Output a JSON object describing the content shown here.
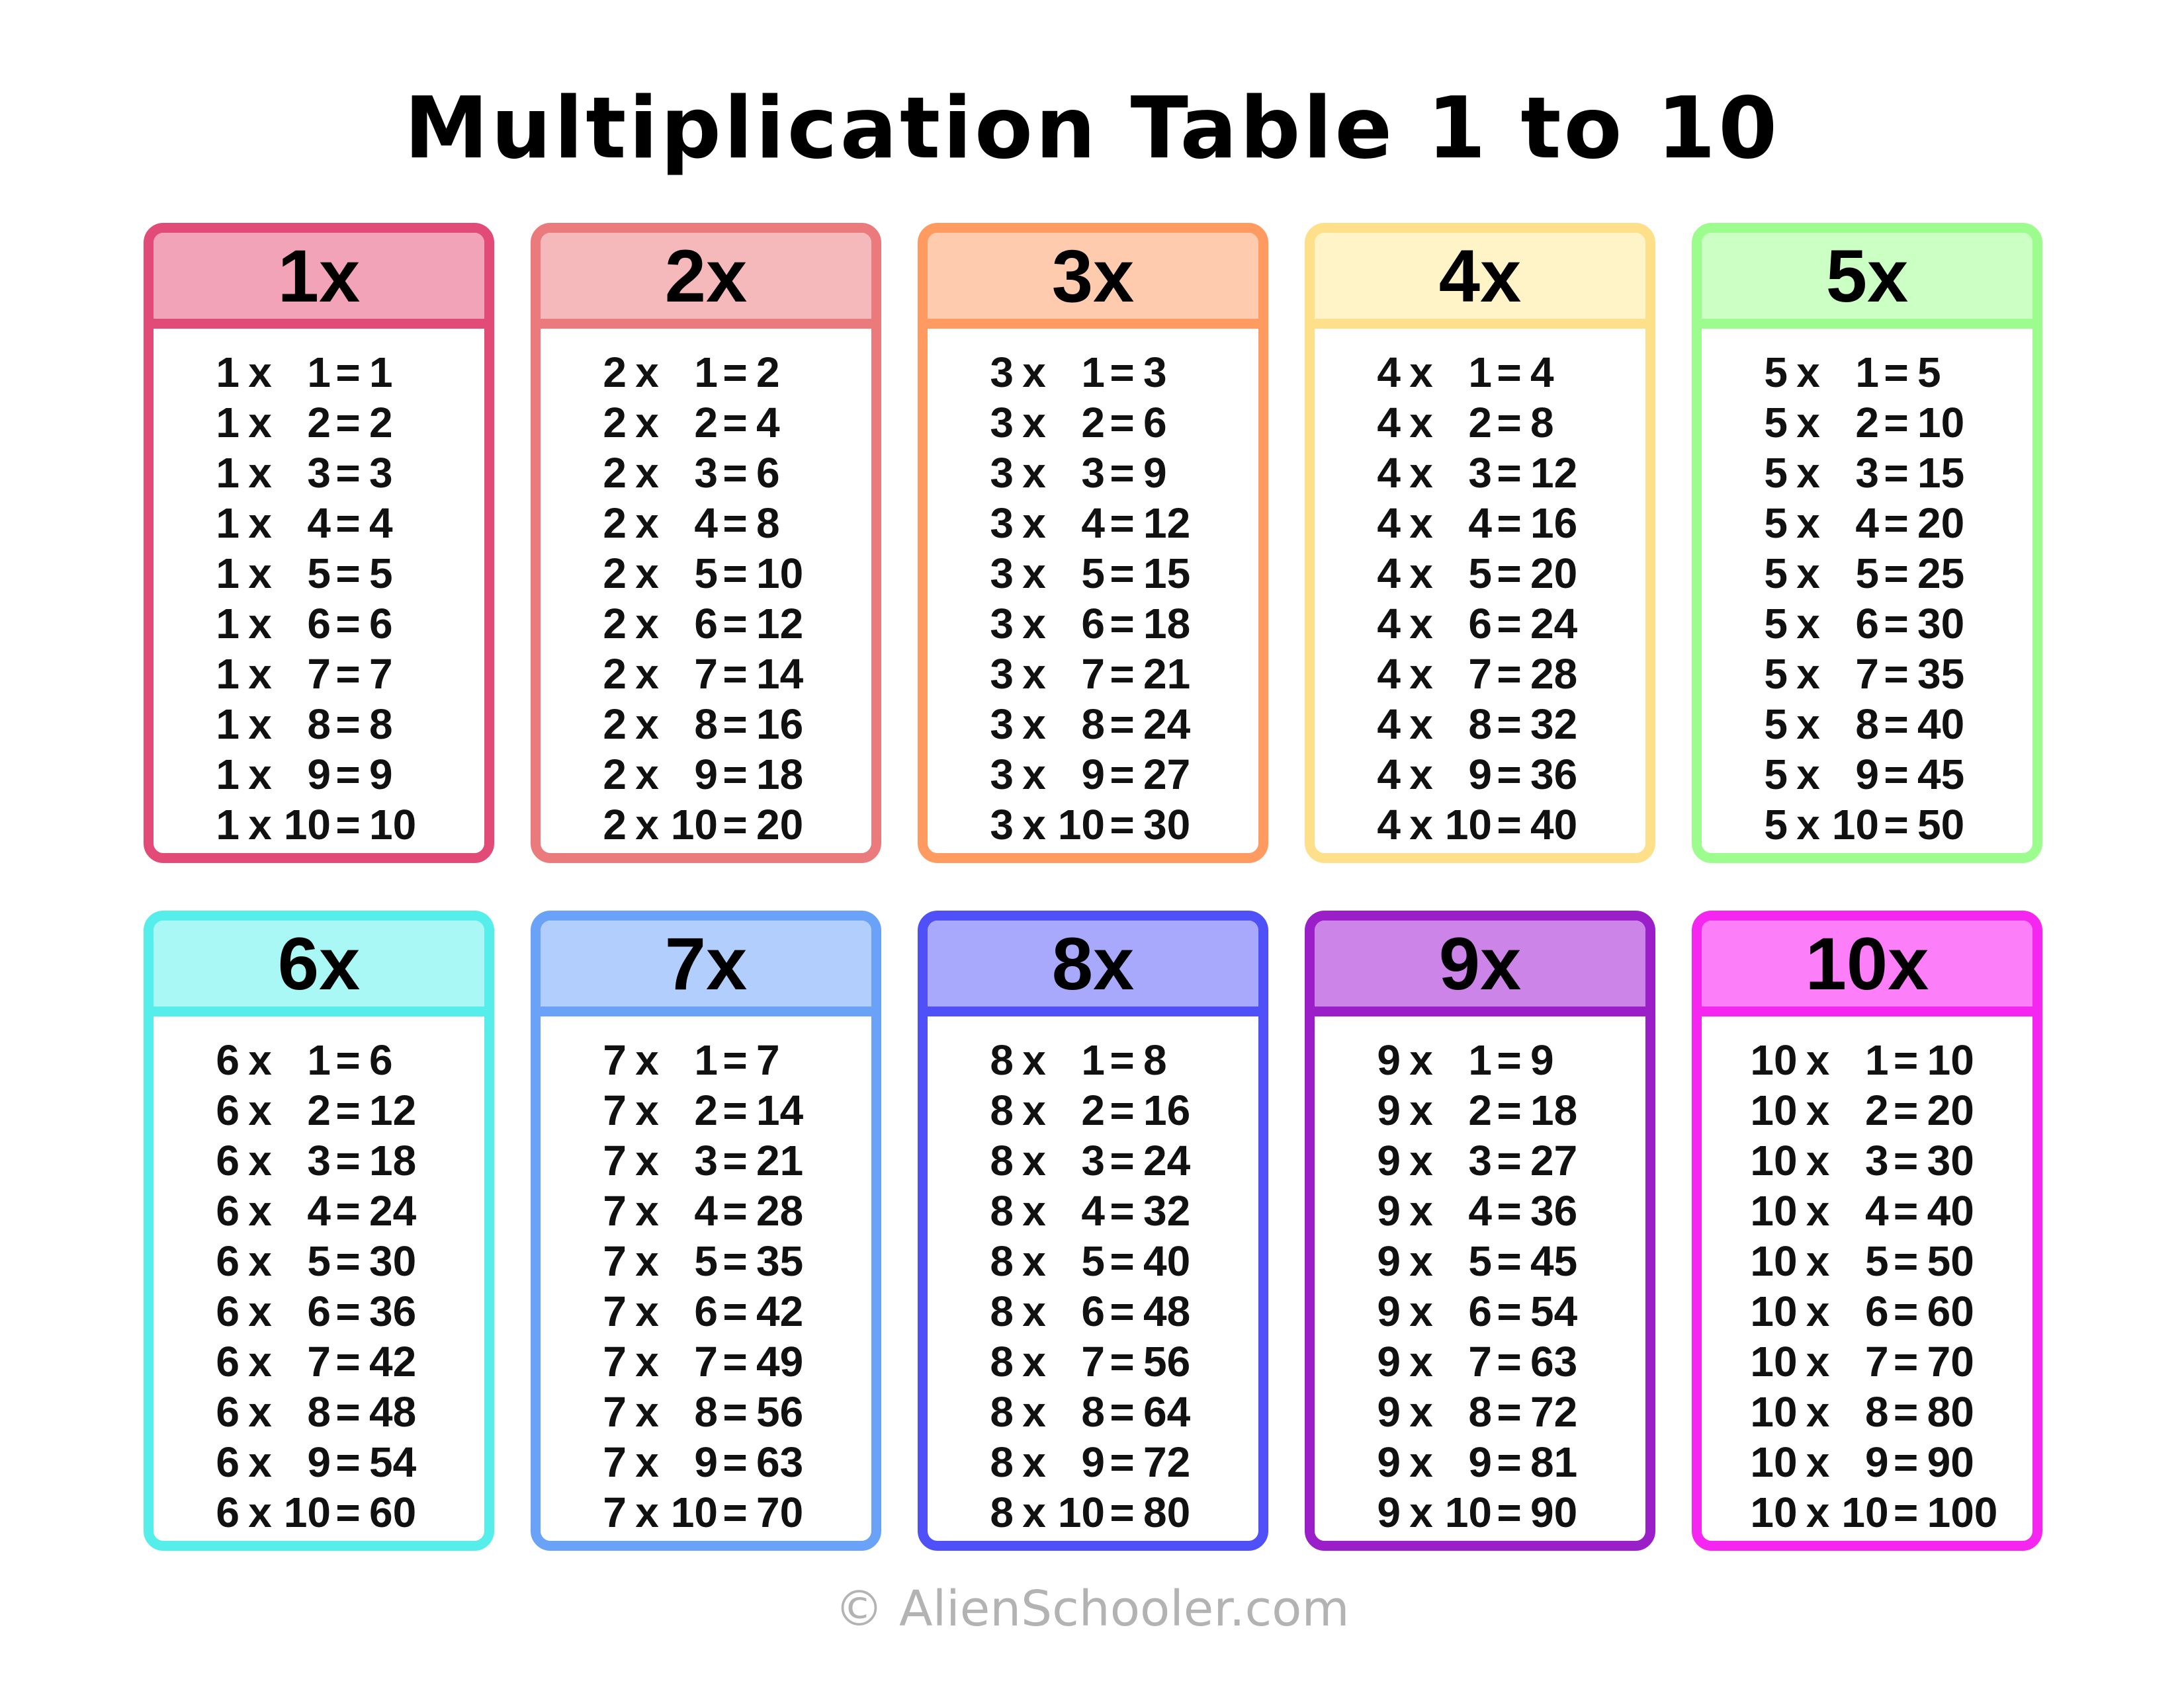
{
  "title": "Multiplication Table 1 to 10",
  "footer": "© AlienSchooler.com",
  "cards": [
    {
      "label": "1x",
      "border": "#e24a78",
      "header": "#f2a3b8",
      "rows": [
        [
          "1",
          "x",
          "1",
          "=",
          "1"
        ],
        [
          "1",
          "x",
          "2",
          "=",
          "2"
        ],
        [
          "1",
          "x",
          "3",
          "=",
          "3"
        ],
        [
          "1",
          "x",
          "4",
          "=",
          "4"
        ],
        [
          "1",
          "x",
          "5",
          "=",
          "5"
        ],
        [
          "1",
          "x",
          "6",
          "=",
          "6"
        ],
        [
          "1",
          "x",
          "7",
          "=",
          "7"
        ],
        [
          "1",
          "x",
          "8",
          "=",
          "8"
        ],
        [
          "1",
          "x",
          "9",
          "=",
          "9"
        ],
        [
          "1",
          "x",
          "10",
          "=",
          "10"
        ]
      ]
    },
    {
      "label": "2x",
      "border": "#ea7a7c",
      "header": "#f5b9bc",
      "rows": [
        [
          "2",
          "x",
          "1",
          "=",
          "2"
        ],
        [
          "2",
          "x",
          "2",
          "=",
          "4"
        ],
        [
          "2",
          "x",
          "3",
          "=",
          "6"
        ],
        [
          "2",
          "x",
          "4",
          "=",
          "8"
        ],
        [
          "2",
          "x",
          "5",
          "=",
          "10"
        ],
        [
          "2",
          "x",
          "6",
          "=",
          "12"
        ],
        [
          "2",
          "x",
          "7",
          "=",
          "14"
        ],
        [
          "2",
          "x",
          "8",
          "=",
          "16"
        ],
        [
          "2",
          "x",
          "9",
          "=",
          "18"
        ],
        [
          "2",
          "x",
          "10",
          "=",
          "20"
        ]
      ]
    },
    {
      "label": "3x",
      "border": "#ff9a60",
      "header": "#ffcbae",
      "rows": [
        [
          "3",
          "x",
          "1",
          "=",
          "3"
        ],
        [
          "3",
          "x",
          "2",
          "=",
          "6"
        ],
        [
          "3",
          "x",
          "3",
          "=",
          "9"
        ],
        [
          "3",
          "x",
          "4",
          "=",
          "12"
        ],
        [
          "3",
          "x",
          "5",
          "=",
          "15"
        ],
        [
          "3",
          "x",
          "6",
          "=",
          "18"
        ],
        [
          "3",
          "x",
          "7",
          "=",
          "21"
        ],
        [
          "3",
          "x",
          "8",
          "=",
          "24"
        ],
        [
          "3",
          "x",
          "9",
          "=",
          "27"
        ],
        [
          "3",
          "x",
          "10",
          "=",
          "30"
        ]
      ]
    },
    {
      "label": "4x",
      "border": "#ffe08a",
      "header": "#fff3c8",
      "rows": [
        [
          "4",
          "x",
          "1",
          "=",
          "4"
        ],
        [
          "4",
          "x",
          "2",
          "=",
          "8"
        ],
        [
          "4",
          "x",
          "3",
          "=",
          "12"
        ],
        [
          "4",
          "x",
          "4",
          "=",
          "16"
        ],
        [
          "4",
          "x",
          "5",
          "=",
          "20"
        ],
        [
          "4",
          "x",
          "6",
          "=",
          "24"
        ],
        [
          "4",
          "x",
          "7",
          "=",
          "28"
        ],
        [
          "4",
          "x",
          "8",
          "=",
          "32"
        ],
        [
          "4",
          "x",
          "9",
          "=",
          "36"
        ],
        [
          "4",
          "x",
          "10",
          "=",
          "40"
        ]
      ]
    },
    {
      "label": "5x",
      "border": "#9dfc8e",
      "header": "#ccffc4",
      "rows": [
        [
          "5",
          "x",
          "1",
          "=",
          "5"
        ],
        [
          "5",
          "x",
          "2",
          "=",
          "10"
        ],
        [
          "5",
          "x",
          "3",
          "=",
          "15"
        ],
        [
          "5",
          "x",
          "4",
          "=",
          "20"
        ],
        [
          "5",
          "x",
          "5",
          "=",
          "25"
        ],
        [
          "5",
          "x",
          "6",
          "=",
          "30"
        ],
        [
          "5",
          "x",
          "7",
          "=",
          "35"
        ],
        [
          "5",
          "x",
          "8",
          "=",
          "40"
        ],
        [
          "5",
          "x",
          "9",
          "=",
          "45"
        ],
        [
          "5",
          "x",
          "10",
          "=",
          "50"
        ]
      ]
    },
    {
      "label": "6x",
      "border": "#56eeea",
      "header": "#aaf8f6",
      "rows": [
        [
          "6",
          "x",
          "1",
          "=",
          "6"
        ],
        [
          "6",
          "x",
          "2",
          "=",
          "12"
        ],
        [
          "6",
          "x",
          "3",
          "=",
          "18"
        ],
        [
          "6",
          "x",
          "4",
          "=",
          "24"
        ],
        [
          "6",
          "x",
          "5",
          "=",
          "30"
        ],
        [
          "6",
          "x",
          "6",
          "=",
          "36"
        ],
        [
          "6",
          "x",
          "7",
          "=",
          "42"
        ],
        [
          "6",
          "x",
          "8",
          "=",
          "48"
        ],
        [
          "6",
          "x",
          "9",
          "=",
          "54"
        ],
        [
          "6",
          "x",
          "10",
          "=",
          "60"
        ]
      ]
    },
    {
      "label": "7x",
      "border": "#6aa2f8",
      "header": "#b2cefc",
      "rows": [
        [
          "7",
          "x",
          "1",
          "=",
          "7"
        ],
        [
          "7",
          "x",
          "2",
          "=",
          "14"
        ],
        [
          "7",
          "x",
          "3",
          "=",
          "21"
        ],
        [
          "7",
          "x",
          "4",
          "=",
          "28"
        ],
        [
          "7",
          "x",
          "5",
          "=",
          "35"
        ],
        [
          "7",
          "x",
          "6",
          "=",
          "42"
        ],
        [
          "7",
          "x",
          "7",
          "=",
          "49"
        ],
        [
          "7",
          "x",
          "8",
          "=",
          "56"
        ],
        [
          "7",
          "x",
          "9",
          "=",
          "63"
        ],
        [
          "7",
          "x",
          "10",
          "=",
          "70"
        ]
      ]
    },
    {
      "label": "8x",
      "border": "#5050f8",
      "header": "#a8a8fc",
      "rows": [
        [
          "8",
          "x",
          "1",
          "=",
          "8"
        ],
        [
          "8",
          "x",
          "2",
          "=",
          "16"
        ],
        [
          "8",
          "x",
          "3",
          "=",
          "24"
        ],
        [
          "8",
          "x",
          "4",
          "=",
          "32"
        ],
        [
          "8",
          "x",
          "5",
          "=",
          "40"
        ],
        [
          "8",
          "x",
          "6",
          "=",
          "48"
        ],
        [
          "8",
          "x",
          "7",
          "=",
          "56"
        ],
        [
          "8",
          "x",
          "8",
          "=",
          "64"
        ],
        [
          "8",
          "x",
          "9",
          "=",
          "72"
        ],
        [
          "8",
          "x",
          "10",
          "=",
          "80"
        ]
      ]
    },
    {
      "label": "9x",
      "border": "#9a1fc8",
      "header": "#cd84e8",
      "rows": [
        [
          "9",
          "x",
          "1",
          "=",
          "9"
        ],
        [
          "9",
          "x",
          "2",
          "=",
          "18"
        ],
        [
          "9",
          "x",
          "3",
          "=",
          "27"
        ],
        [
          "9",
          "x",
          "4",
          "=",
          "36"
        ],
        [
          "9",
          "x",
          "5",
          "=",
          "45"
        ],
        [
          "9",
          "x",
          "6",
          "=",
          "54"
        ],
        [
          "9",
          "x",
          "7",
          "=",
          "63"
        ],
        [
          "9",
          "x",
          "8",
          "=",
          "72"
        ],
        [
          "9",
          "x",
          "9",
          "=",
          "81"
        ],
        [
          "9",
          "x",
          "10",
          "=",
          "90"
        ]
      ]
    },
    {
      "label": "10x",
      "border": "#f526f0",
      "header": "#fc7ef8",
      "rows": [
        [
          "10",
          "x",
          "1",
          "=",
          "10"
        ],
        [
          "10",
          "x",
          "2",
          "=",
          "20"
        ],
        [
          "10",
          "x",
          "3",
          "=",
          "30"
        ],
        [
          "10",
          "x",
          "4",
          "=",
          "40"
        ],
        [
          "10",
          "x",
          "5",
          "=",
          "50"
        ],
        [
          "10",
          "x",
          "6",
          "=",
          "60"
        ],
        [
          "10",
          "x",
          "7",
          "=",
          "70"
        ],
        [
          "10",
          "x",
          "8",
          "=",
          "80"
        ],
        [
          "10",
          "x",
          "9",
          "=",
          "90"
        ],
        [
          "10",
          "x",
          "10",
          "=",
          "100"
        ]
      ]
    }
  ]
}
